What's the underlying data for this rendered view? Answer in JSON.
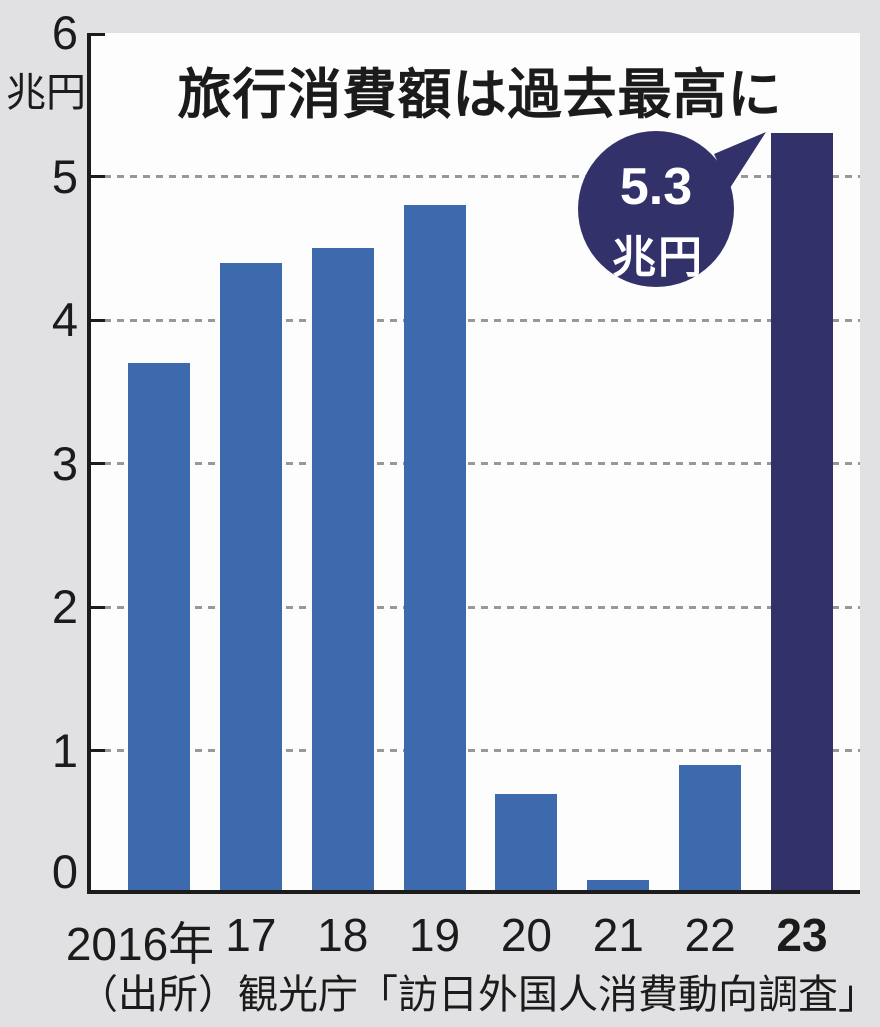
{
  "chart_data": {
    "type": "bar",
    "title": "旅行消費額は過去最高に",
    "unit_label": "兆円",
    "categories": [
      "2016年",
      "17",
      "18",
      "19",
      "20",
      "21",
      "22",
      "23"
    ],
    "values": [
      3.7,
      4.4,
      4.5,
      4.8,
      0.7,
      0.1,
      0.9,
      5.3
    ],
    "highlight_index": 7,
    "ylim": [
      0,
      6
    ],
    "yticks": [
      0,
      1,
      2,
      3,
      4,
      5,
      6
    ],
    "grid": "dashed-horizontal",
    "legend": "none",
    "annotation": {
      "line1": "5.3",
      "line2": "兆円",
      "shape": "speech-bubble-circle",
      "points_to": "bar-23-top"
    },
    "colors": {
      "bar": "#3d6aad",
      "highlight_bar": "#32316a",
      "bubble": "#32316a",
      "bubble_text": "#ffffff",
      "background": "#e1e1e3",
      "plot_background": "#fdfdfe",
      "grid": "#98989a",
      "axis": "#1c1c1c",
      "text": "#1b1b1b"
    }
  },
  "source": "（出所）観光庁「訪日外国人消費動向調査」"
}
